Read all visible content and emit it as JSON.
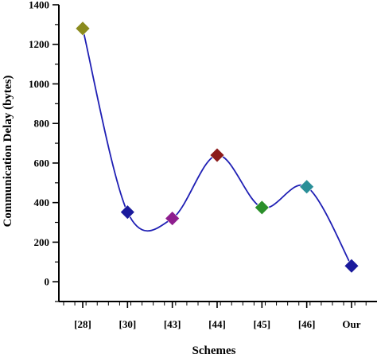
{
  "chart_data": {
    "type": "line",
    "title": "",
    "xlabel": "Schemes",
    "ylabel": "Communication Delay (bytes)",
    "categories": [
      "[28]",
      "[30]",
      "[43]",
      "[44]",
      "[45]",
      "[46]",
      "Our"
    ],
    "values": [
      1280,
      352,
      320,
      640,
      375,
      480,
      80
    ],
    "ylim": [
      -100,
      1400
    ],
    "yticks": [
      0,
      200,
      400,
      600,
      800,
      1000,
      1200,
      1400
    ],
    "line_color": "#1f1fb4",
    "marker": "diamond",
    "marker_colors": [
      "#8b8b1e",
      "#1a1a9c",
      "#8e1e8e",
      "#8b1a1a",
      "#2a8f2a",
      "#2a8f98",
      "#1a1a9c"
    ],
    "smooth": true,
    "grid": false,
    "legend": "none"
  }
}
